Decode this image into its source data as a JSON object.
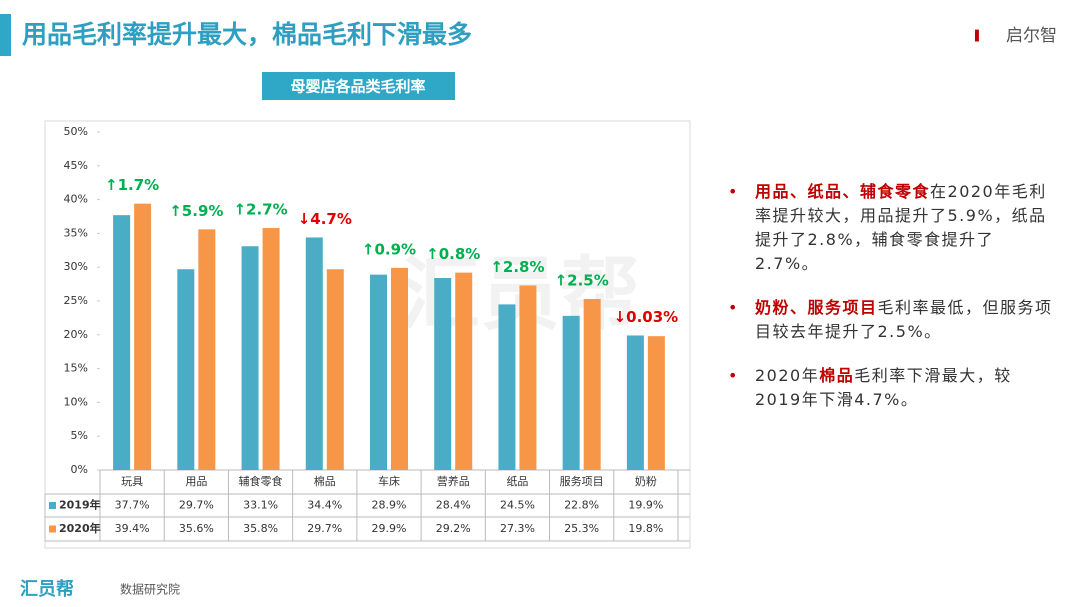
{
  "header": {
    "title": "用品毛利率提升最大，棉品毛利下滑最多",
    "logo": "启尔智"
  },
  "chart_data": {
    "type": "bar",
    "title": "母婴店各品类毛利率",
    "categories": [
      "玩具",
      "用品",
      "辅食零食",
      "棉品",
      "车床",
      "营养品",
      "纸品",
      "服务项目",
      "奶粉"
    ],
    "series": [
      {
        "name": "2019年",
        "color": "#4bacc6",
        "values": [
          37.7,
          29.7,
          33.1,
          34.4,
          28.9,
          28.4,
          24.5,
          22.8,
          19.9
        ],
        "value_labels": [
          "37.7%",
          "29.7%",
          "33.1%",
          "34.4%",
          "28.9%",
          "28.4%",
          "24.5%",
          "22.8%",
          "19.9%"
        ]
      },
      {
        "name": "2020年",
        "color": "#f79646",
        "values": [
          39.4,
          35.6,
          35.8,
          29.7,
          29.9,
          29.2,
          27.3,
          25.3,
          19.8
        ],
        "value_labels": [
          "39.4%",
          "35.6%",
          "35.8%",
          "29.7%",
          "29.9%",
          "29.2%",
          "27.3%",
          "25.3%",
          "19.8%"
        ]
      }
    ],
    "annotations": [
      {
        "text": "↑1.7%",
        "color": "#00b050"
      },
      {
        "text": "↑5.9%",
        "color": "#00b050"
      },
      {
        "text": "↑2.7%",
        "color": "#00b050"
      },
      {
        "text": "↓4.7%",
        "color": "#e00000"
      },
      {
        "text": "↑0.9%",
        "color": "#00b050"
      },
      {
        "text": "↑0.8%",
        "color": "#00b050"
      },
      {
        "text": "↑2.8%",
        "color": "#00b050"
      },
      {
        "text": "↑2.5%",
        "color": "#00b050"
      },
      {
        "text": "↓0.03%",
        "color": "#e00000"
      }
    ],
    "ylim": [
      0,
      50
    ],
    "yticks": [
      {
        "value": 0,
        "label": "0%"
      },
      {
        "value": 5,
        "label": "5%"
      },
      {
        "value": 10,
        "label": "10%"
      },
      {
        "value": 15,
        "label": "15%"
      },
      {
        "value": 20,
        "label": "20%"
      },
      {
        "value": 25,
        "label": "25%"
      },
      {
        "value": 30,
        "label": "30%"
      },
      {
        "value": 35,
        "label": "35%"
      },
      {
        "value": 40,
        "label": "40%"
      },
      {
        "value": 45,
        "label": "45%"
      },
      {
        "value": 50,
        "label": "50%"
      }
    ],
    "grid": false
  },
  "bullets": [
    {
      "parts": [
        {
          "text": "用品、纸品、辅食零食",
          "color": "#c00000"
        },
        {
          "text": "在2020年毛利率提升较大，用品提升了5.9%，纸品提升了2.8%，辅食零食提升了2.7%。"
        }
      ]
    },
    {
      "parts": [
        {
          "text": "奶粉、服务项目",
          "color": "#c00000"
        },
        {
          "text": "毛利率最低，但服务项目较去年提升了2.5%。"
        }
      ]
    },
    {
      "parts": [
        {
          "text": "2020年"
        },
        {
          "text": "棉品",
          "color": "#c00000"
        },
        {
          "text": "毛利率下滑最大，较2019年下滑4.7%。"
        }
      ]
    }
  ],
  "watermark": "汇员帮",
  "footer": {
    "brand": "汇员帮",
    "org": "数据研究院"
  }
}
